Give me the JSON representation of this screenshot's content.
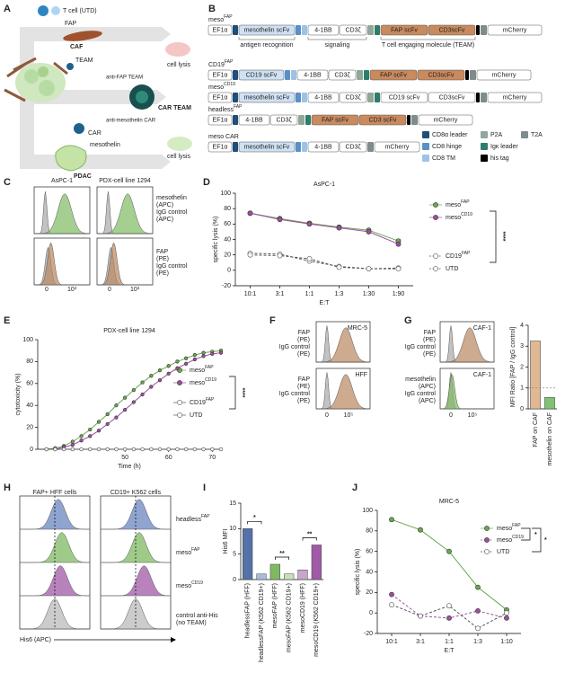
{
  "panel_labels": [
    "A",
    "B",
    "C",
    "D",
    "E",
    "F",
    "G",
    "H",
    "I",
    "J"
  ],
  "panel_a": {
    "labels": [
      "T cell (UTD)",
      "FAP",
      "CAF",
      "cell lysis",
      "TEAM",
      "anti-FAP TEAM",
      "CAR TEAM",
      "anti-mesothelin CAR",
      "CAR",
      "mesothelin",
      "PDAC",
      "cell lysis"
    ]
  },
  "panel_b": {
    "constructs": [
      {
        "name": "meso",
        "sup": "FAP",
        "segments": [
          "EF1α",
          "mesothelin scFv",
          "4-1BB",
          "CD3ζ",
          "FAP scFv",
          "CD3scFv",
          "mCherry"
        ]
      },
      {
        "name": "CD19",
        "sup": "FAP",
        "segments": [
          "EF1α",
          "CD19 scFv",
          "4-1BB",
          "CD3ζ",
          "FAP scFv",
          "CD3scFv",
          "mCherry"
        ]
      },
      {
        "name": "meso",
        "sup": "CD19",
        "segments": [
          "EF1α",
          "mesothelin scFv",
          "4-1BB",
          "CD3ζ",
          "CD19 scFv",
          "CD3scFv",
          "mCherry"
        ]
      },
      {
        "name": "headless",
        "sup": "FAP",
        "segments": [
          "EF1α",
          "4-1BB",
          "CD3ζ",
          "FAP scFv",
          "CD3 scFv",
          "mCherry"
        ]
      },
      {
        "name": "meso CAR",
        "segments": [
          "EF1α",
          "mesothelin scFv",
          "4-1BB",
          "CD3ζ",
          "mCherry"
        ]
      }
    ],
    "annotations": [
      "antigen recognition",
      "signaling",
      "T cell engaging molecule (TEAM)"
    ],
    "legend": [
      "CD8α leader",
      "P2A",
      "T2A",
      "CD8 hinge",
      "Igκ leader",
      "CD8 TM",
      "his tag"
    ]
  },
  "panel_c": {
    "columns": [
      "AsPC-1",
      "PDX-cell line 1294"
    ],
    "rows": [
      [
        "mesothelin",
        "(APC)",
        "IgG control",
        "(APC)"
      ],
      [
        "FAP",
        "(PE)",
        "IgG control",
        "(PE)"
      ]
    ],
    "ticks": [
      "0",
      "10³"
    ]
  },
  "panel_f": {
    "samples": [
      "MRC-5",
      "HFF"
    ],
    "rows": [
      [
        "FAP",
        "(PE)",
        "IgG control",
        "(PE)"
      ],
      [
        "FAP",
        "(PE)",
        "IgG control",
        "(PE)"
      ]
    ],
    "ticks": [
      "0",
      "10⁵"
    ]
  },
  "panel_g": {
    "samples": [
      "CAF-1",
      "CAF-1"
    ],
    "rows": [
      [
        "FAP",
        "(PE)",
        "IgG control",
        "(PE)"
      ],
      [
        "mesothelin",
        "(APC)",
        "IgG control",
        "(APC)"
      ]
    ],
    "ticks": [
      "0",
      "10⁵"
    ]
  },
  "panel_h": {
    "columns": [
      "FAP+ HFF cells",
      "CD19+ K562 cells"
    ],
    "rows": [
      {
        "name": "headless",
        "sup": "FAP"
      },
      {
        "name": "meso",
        "sup": "FAP"
      },
      {
        "name": "meso",
        "sup": "CD19"
      },
      {
        "name": "control anti-His",
        "note": "(no TEAM)"
      }
    ],
    "x_label": "His6 (APC)"
  },
  "chart_data": [
    {
      "type": "line",
      "title": "AsPC-1",
      "x_label": "E:T",
      "y_label": "specific lysis (%)",
      "categories": [
        "10:1",
        "3:1",
        "1:1",
        "1:3",
        "1:30",
        "1:90"
      ],
      "ylim": [
        -20,
        100
      ],
      "yticks": [
        -20,
        0,
        20,
        40,
        60,
        80,
        100
      ],
      "series": [
        {
          "name": "meso",
          "sup": "FAP",
          "color": "#6aa84f",
          "values": [
            74,
            67,
            61,
            56,
            52,
            38
          ]
        },
        {
          "name": "meso",
          "sup": "CD19",
          "color": "#9c4f9f",
          "values": [
            74,
            66,
            60,
            55,
            50,
            34
          ]
        },
        {
          "name": "CD19",
          "sup": "FAP",
          "color": "#555555",
          "open": true,
          "dash": true,
          "values": [
            22,
            21,
            12,
            5,
            2,
            3
          ]
        },
        {
          "name": "UTD",
          "color": "#555555",
          "open": true,
          "dash": true,
          "values": [
            20,
            19,
            15,
            4,
            2,
            2
          ]
        }
      ],
      "significance": "****"
    },
    {
      "type": "line",
      "title": "PDX-cell line 1294",
      "x_label": "Time (h)",
      "y_label": "cytotoxicity (%)",
      "x": [
        32,
        34,
        36,
        38,
        40,
        42,
        44,
        46,
        48,
        50,
        52,
        54,
        56,
        58,
        60,
        62,
        64,
        66,
        68,
        70,
        72
      ],
      "xlim": [
        30,
        72
      ],
      "xticks": [
        50,
        60,
        70
      ],
      "ylim": [
        0,
        100
      ],
      "yticks": [
        0,
        20,
        40,
        60,
        80,
        100
      ],
      "series": [
        {
          "name": "meso",
          "sup": "FAP",
          "color": "#6aa84f",
          "values": [
            0,
            1,
            3,
            7,
            12,
            18,
            25,
            32,
            40,
            47,
            54,
            61,
            67,
            72,
            76,
            80,
            83,
            86,
            88,
            89,
            90
          ]
        },
        {
          "name": "meso",
          "sup": "CD19",
          "color": "#9c4f9f",
          "values": [
            0,
            0,
            2,
            4,
            8,
            12,
            17,
            23,
            29,
            36,
            43,
            50,
            57,
            63,
            69,
            74,
            78,
            82,
            85,
            87,
            88
          ]
        },
        {
          "name": "CD19",
          "sup": "FAP",
          "color": "#555555",
          "open": true,
          "values": [
            0,
            0,
            0,
            0,
            0,
            0,
            0,
            0,
            0,
            0,
            0,
            0,
            0,
            0,
            0,
            0,
            0,
            0,
            0,
            0,
            0
          ]
        },
        {
          "name": "UTD",
          "color": "#555555",
          "open": true,
          "values": [
            0,
            0,
            0,
            0,
            0,
            0,
            0,
            0,
            0,
            0,
            0,
            0,
            0,
            0,
            0,
            0,
            0,
            0,
            0,
            0,
            0
          ]
        }
      ],
      "significance": "****"
    },
    {
      "type": "bar",
      "y_label": "MFI Ratio [FAP / IgG control]",
      "categories": [
        "FAP on CAF",
        "mesothelin on CAF"
      ],
      "values": [
        3.25,
        0.55
      ],
      "colors": [
        "#e0b894",
        "#82c275"
      ],
      "ylim": [
        0,
        4
      ],
      "yticks": [
        0,
        1,
        2,
        3,
        4
      ],
      "reference_line": 1
    },
    {
      "type": "bar",
      "y_label": "His6 MFI",
      "categories": [
        "headlessFAP (HFF)",
        "headlessFAP (K562 CD19+)",
        "mesoFAP (HFF)",
        "mesoFAP (K562 CD19+)",
        "mesoCD19 (HFF)",
        "mesoCD19 (K562 CD19+)"
      ],
      "values": [
        10.0,
        1.1,
        3.0,
        1.1,
        1.9,
        6.8
      ],
      "colors": [
        "#5472a8",
        "#a9bbdd",
        "#7fba62",
        "#c7e1b7",
        "#c9a4cc",
        "#a05aa6"
      ],
      "ylim": [
        0,
        15
      ],
      "yticks": [
        0,
        5,
        10,
        15
      ],
      "significance": [
        "*",
        "**",
        "**"
      ]
    },
    {
      "type": "line",
      "title": "MRC-5",
      "x_label": "E:T",
      "y_label": "specific lysis (%)",
      "categories": [
        "10:1",
        "3:1",
        "1:1",
        "1:3",
        "1:10"
      ],
      "ylim": [
        -20,
        100
      ],
      "yticks": [
        -20,
        0,
        20,
        40,
        60,
        80,
        100
      ],
      "series": [
        {
          "name": "meso",
          "sup": "FAP",
          "color": "#6aa84f",
          "values": [
            91,
            81,
            60,
            25,
            3
          ]
        },
        {
          "name": "meso",
          "sup": "CD19",
          "color": "#9c4f9f",
          "dash": true,
          "values": [
            18,
            -3,
            -5,
            2,
            -5
          ]
        },
        {
          "name": "UTD",
          "color": "#555555",
          "open": true,
          "dash": true,
          "values": [
            8,
            -3,
            7,
            -15,
            0
          ]
        }
      ],
      "significance": [
        "*",
        "*"
      ]
    }
  ]
}
